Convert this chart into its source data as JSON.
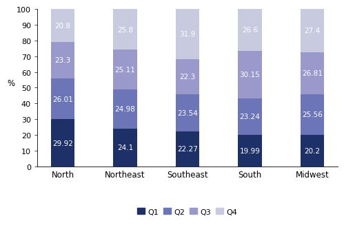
{
  "categories": [
    "North",
    "Northeast",
    "Southeast",
    "South",
    "Midwest"
  ],
  "series": {
    "Q1": [
      29.92,
      24.1,
      22.27,
      19.99,
      20.2
    ],
    "Q2": [
      26.01,
      24.98,
      23.54,
      23.24,
      25.56
    ],
    "Q3": [
      23.3,
      25.11,
      22.3,
      30.15,
      26.81
    ],
    "Q4": [
      20.8,
      25.8,
      31.9,
      26.6,
      27.4
    ]
  },
  "colors": {
    "Q1": "#1e3068",
    "Q2": "#6b75b8",
    "Q3": "#9999cc",
    "Q4": "#c8cadf"
  },
  "ylabel": "%",
  "ylim": [
    0,
    100
  ],
  "yticks": [
    0,
    10,
    20,
    30,
    40,
    50,
    60,
    70,
    80,
    90,
    100
  ],
  "legend_order": [
    "Q1",
    "Q2",
    "Q3",
    "Q4"
  ],
  "bar_width": 0.38,
  "label_fontsize": 7.5,
  "axis_fontsize": 8.5,
  "legend_fontsize": 8,
  "tick_fontsize": 8
}
